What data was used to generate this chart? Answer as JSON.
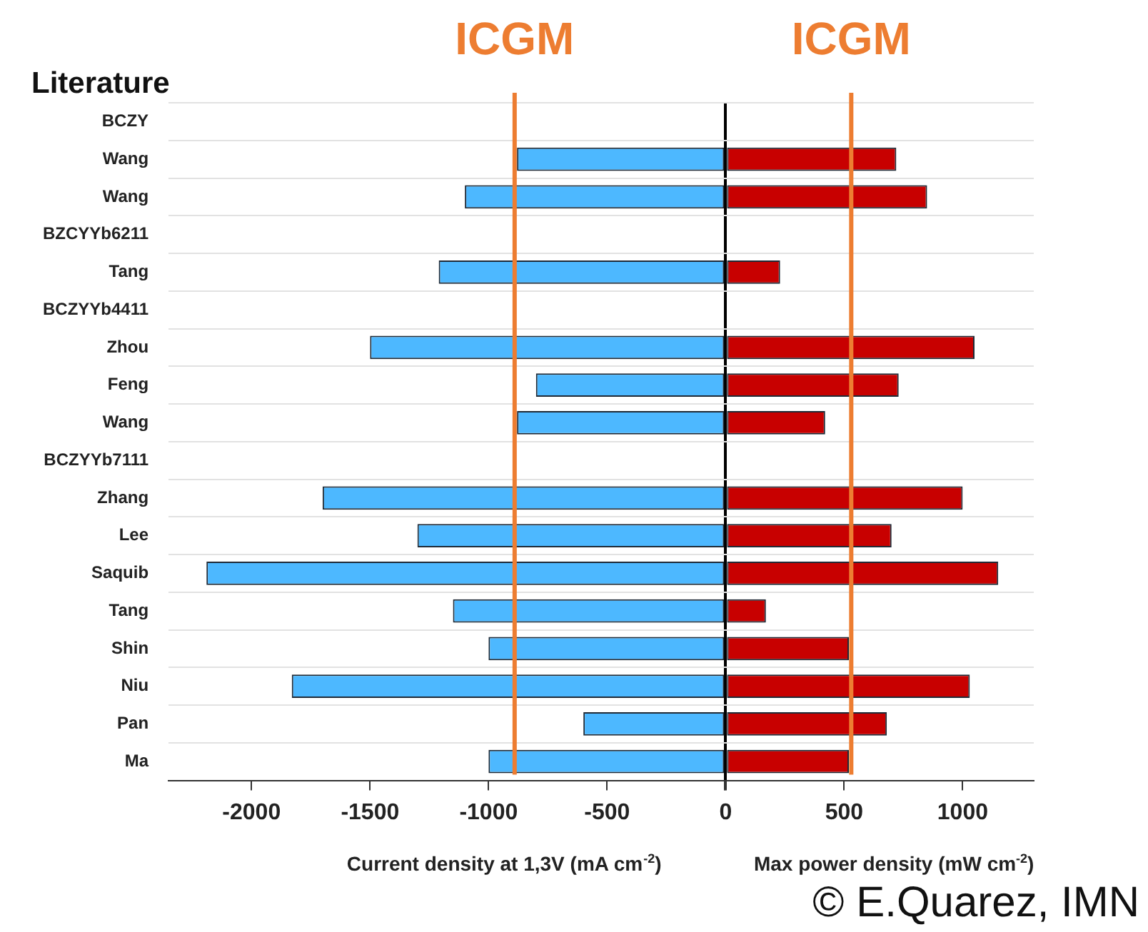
{
  "chart_data": {
    "type": "bar",
    "orientation": "horizontal",
    "title": "Literature",
    "xlabel": "Current density at 1,3V (mA cm$^{-2}$)",
    "categories": [
      "BCZY",
      "Wang",
      "Wang",
      "BZCYYb6211",
      "Tang",
      "BCZYYb4411",
      "Zhou",
      "Feng",
      "Wang",
      "BCZYYb7111",
      "Zhang",
      "Lee",
      "Saquib",
      "Tang",
      "Shin",
      "Niu",
      "Pan",
      "Ma"
    ],
    "series": [
      {
        "color": "#4db8ff",
        "values": [
          null,
          -880,
          -1100,
          null,
          -1210,
          null,
          -1500,
          -800,
          -880,
          null,
          -1700,
          -1300,
          -2190,
          -1150,
          -1000,
          -1830,
          -600,
          -1000
        ]
      },
      {
        "color": "#c80000",
        "values": [
          null,
          720,
          850,
          null,
          230,
          null,
          1050,
          730,
          420,
          null,
          1000,
          700,
          1150,
          170,
          520,
          1030,
          680,
          520
        ]
      }
    ],
    "xlim": [
      -2350,
      1300
    ],
    "xticks": [
      -2000,
      -1500,
      -1000,
      -500,
      0,
      500,
      1000
    ],
    "grid": "y",
    "stacked": true,
    "ref_lines": [
      {
        "axis": "x",
        "value": -890,
        "label": "ICGM",
        "color": "#ed7d31"
      },
      {
        "axis": "x",
        "value": 530,
        "label": "ICGM",
        "color": "#ed7d31"
      }
    ],
    "annotations": [
      "Max power density (mW cm$^{-2}$)",
      "© E.Quarez, IMN"
    ]
  }
}
